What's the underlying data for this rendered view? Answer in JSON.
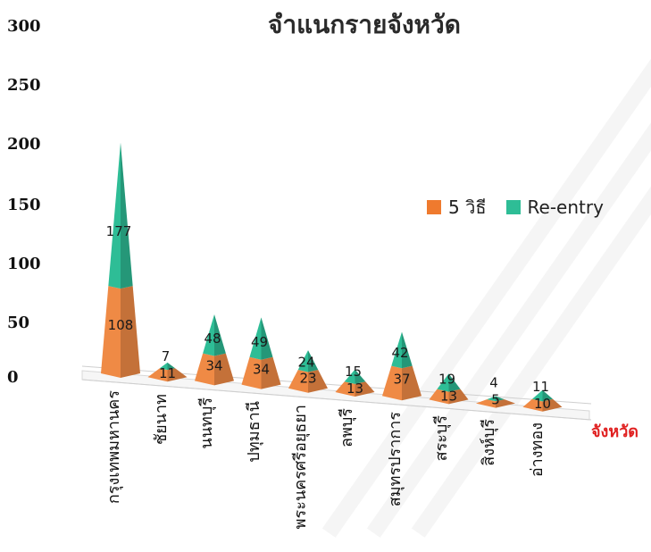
{
  "chart_data": {
    "type": "bar",
    "title": "จำแนกรายจังหวัด",
    "xlabel": "จังหวัด",
    "ylabel": "",
    "ylim": [
      0,
      300
    ],
    "yticks": [
      "0",
      "50",
      "100",
      "150",
      "200",
      "250",
      "300"
    ],
    "categories": [
      "กรุงเทพมหานคร",
      "ชัยนาท",
      "นนทบุรี",
      "ปทุมธานี",
      "พระนครศรีอยุธยา",
      "ลพบุรี",
      "สมุทรปราการ",
      "สระบุรี",
      "สิงห์บุรี",
      "อ่างทอง"
    ],
    "series": [
      {
        "name": "5 วิธี",
        "color": "#ef8a45",
        "values": [
          108,
          11,
          34,
          34,
          23,
          13,
          37,
          13,
          5,
          10
        ]
      },
      {
        "name": "Re-entry",
        "color": "#2ebd96",
        "values": [
          177,
          7,
          48,
          49,
          24,
          15,
          42,
          19,
          4,
          11
        ]
      }
    ],
    "stacked": true,
    "shape": "pyramid-3d",
    "legend_position": "right"
  }
}
